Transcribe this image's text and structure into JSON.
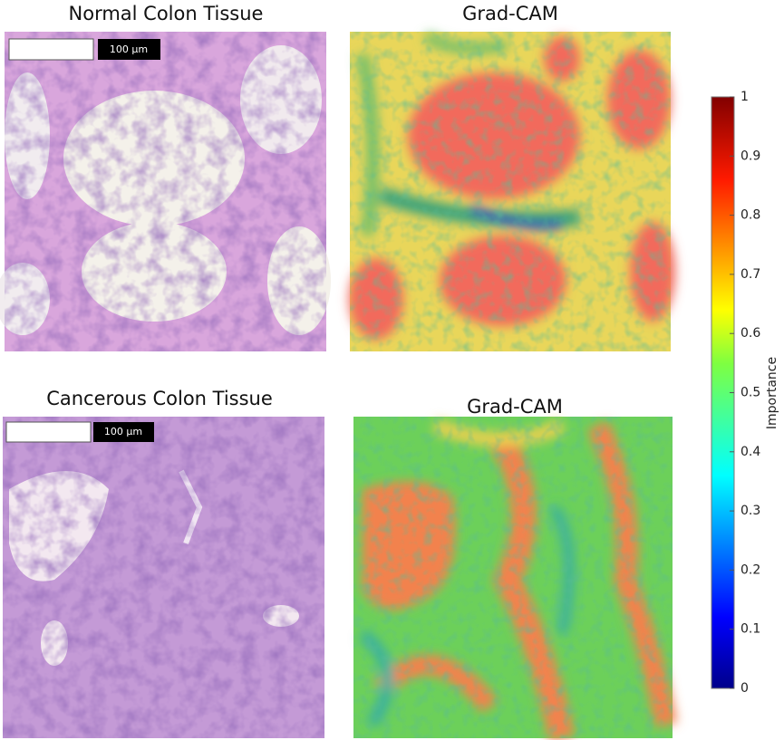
{
  "panels": [
    {
      "title": "Normal Colon Tissue",
      "scale_bar": "100 µm"
    },
    {
      "title": "Grad-CAM"
    },
    {
      "title": "Cancerous Colon Tissue",
      "scale_bar": "100 µm"
    },
    {
      "title": "Grad-CAM"
    }
  ],
  "colorbar": {
    "label": "Importance",
    "lim": [
      0,
      1
    ],
    "ticks": [
      0,
      0.1,
      0.2,
      0.3,
      0.4,
      0.5,
      0.6,
      0.7,
      0.8,
      0.9,
      1
    ]
  }
}
